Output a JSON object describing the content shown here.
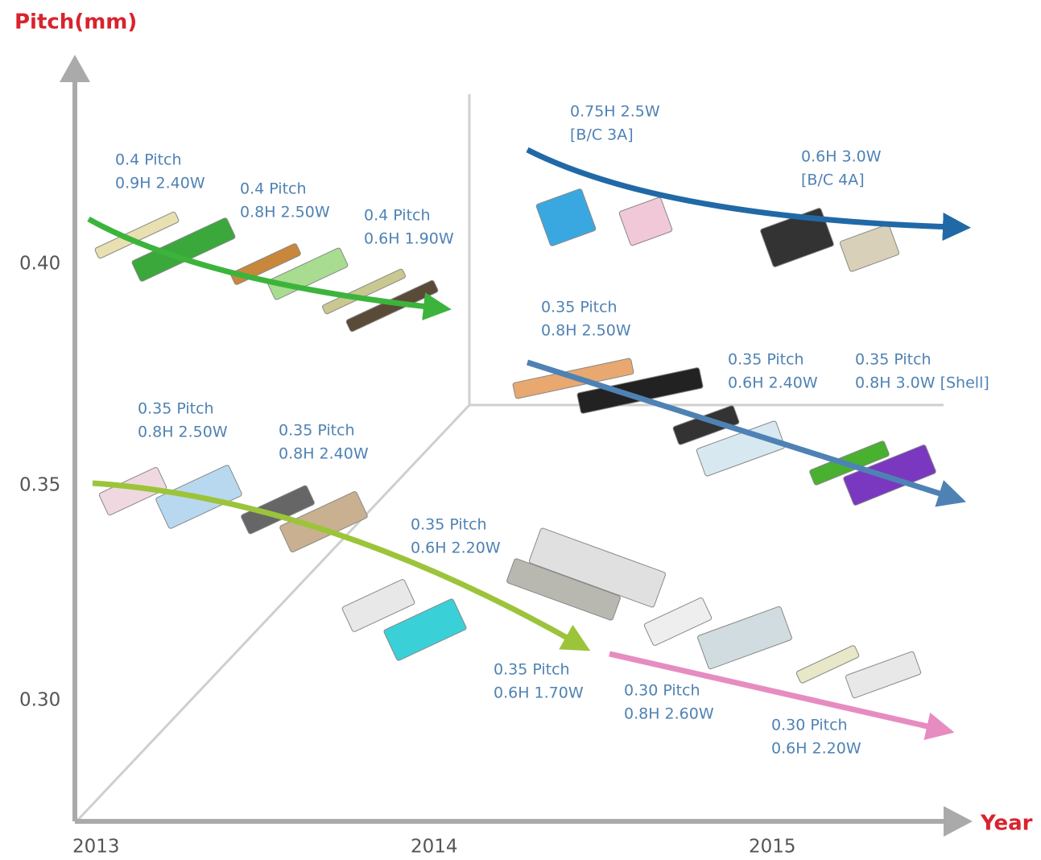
{
  "axes": {
    "y_title": "Pitch(mm)",
    "x_title": "Year",
    "y_labels": [
      "0.40",
      "0.35",
      "0.30"
    ],
    "x_labels": [
      "2013",
      "2014",
      "2015"
    ]
  },
  "annotations": [
    {
      "lines": [
        "0.4 Pitch",
        "0.9H 2.40W"
      ]
    },
    {
      "lines": [
        "0.4 Pitch",
        "0.8H 2.50W"
      ]
    },
    {
      "lines": [
        "0.4 Pitch",
        "0.6H 1.90W"
      ]
    },
    {
      "lines": [
        "0.75H 2.5W",
        "[B/C 3A]"
      ]
    },
    {
      "lines": [
        "0.6H 3.0W",
        "[B/C 4A]"
      ]
    },
    {
      "lines": [
        "0.35 Pitch",
        "0.8H 2.50W"
      ]
    },
    {
      "lines": [
        "0.35 Pitch",
        "0.6H 2.40W"
      ]
    },
    {
      "lines": [
        "0.35 Pitch",
        "0.8H 3.0W [Shell]"
      ]
    },
    {
      "lines": [
        "0.35 Pitch",
        "0.8H 2.50W"
      ]
    },
    {
      "lines": [
        "0.35 Pitch",
        "0.8H 2.40W"
      ]
    },
    {
      "lines": [
        "0.35 Pitch",
        "0.6H 2.20W"
      ]
    },
    {
      "lines": [
        "0.35 Pitch",
        "0.6H 1.70W"
      ]
    },
    {
      "lines": [
        "0.30 Pitch",
        "0.8H 2.60W"
      ]
    },
    {
      "lines": [
        "0.30 Pitch",
        "0.6H 2.20W"
      ]
    }
  ]
}
